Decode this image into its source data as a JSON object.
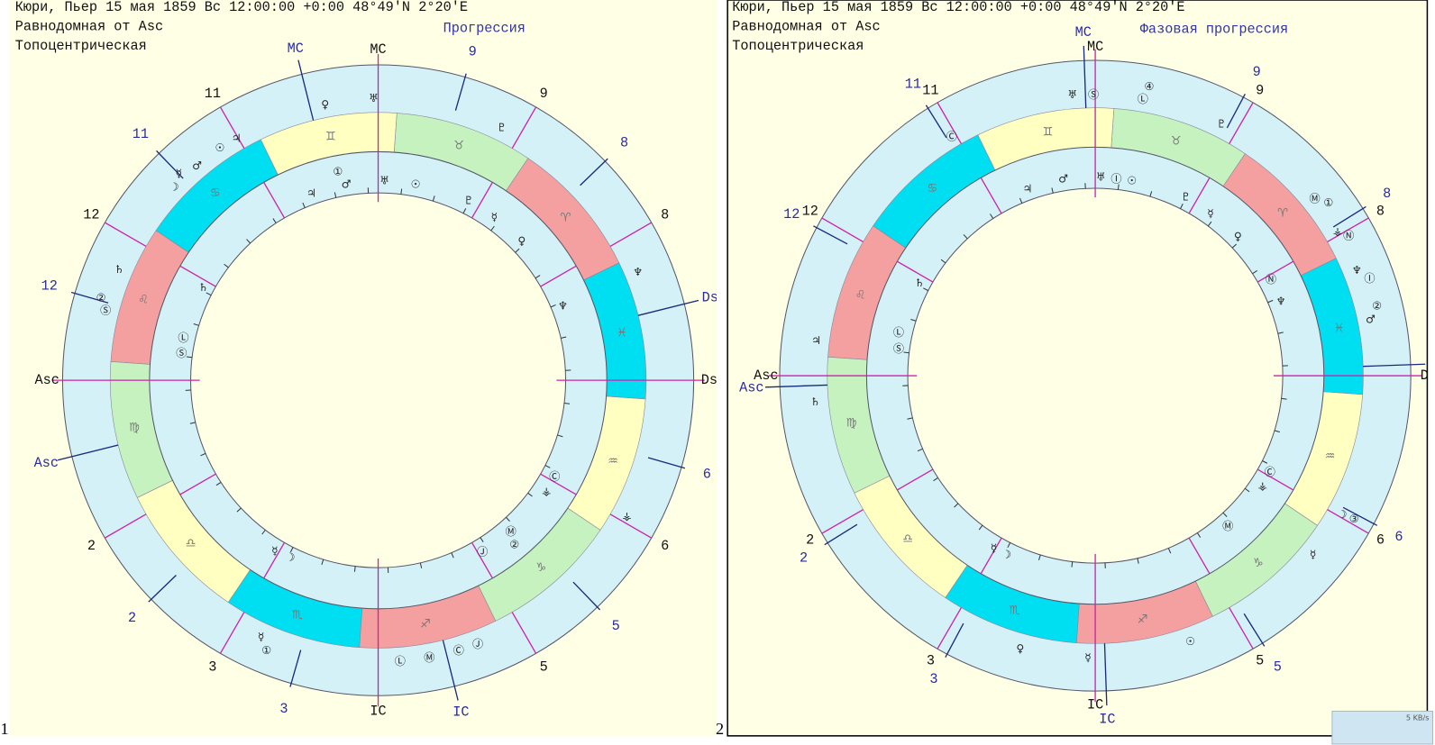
{
  "signs": [
    "♈",
    "♉",
    "♊",
    "♋",
    "♌",
    "♍",
    "♎",
    "♏",
    "♐",
    "♑",
    "♒",
    "♓"
  ],
  "charts": [
    {
      "number": "1",
      "header": [
        "Кюри, Пьер  15 мая 1859  Вс  12:00:00 +0:00 48°49'N   2°20'E",
        "Равнодомная от Asc",
        "Топоцентрическая"
      ],
      "title": "Прогрессия",
      "house_labels": [
        "MC",
        "11",
        "12",
        "Asc",
        "2",
        "3",
        "IC",
        "5",
        "6",
        "Ds",
        "8",
        "9"
      ],
      "progressed_labels": [
        "MC",
        "11",
        "12",
        "Asc",
        "2",
        "3",
        "IC",
        "5",
        "6",
        "Ds",
        "8",
        "9"
      ],
      "outer_glyphs": [
        "♀",
        "♅",
        "♇",
        "☉",
        "♃",
        "♂",
        "☿",
        "☽",
        "♄",
        "②",
        "Ⓢ",
        "♆",
        "⚶",
        "☿",
        "①",
        "Ⓛ",
        "Ⓜ",
        "Ⓒ",
        "Ⓙ"
      ],
      "inner_glyphs": [
        "①",
        "♂",
        "♅",
        "☉",
        "♃",
        "♇",
        "☿",
        "♀",
        "♄",
        "♆",
        "Ⓛ",
        "Ⓢ",
        "Ⓒ",
        "⚶",
        "Ⓜ",
        "②",
        "Ⓙ",
        "☿",
        "☽"
      ]
    },
    {
      "number": "2",
      "header": [
        "Кюри, Пьер  15 мая 1859  Вс  12:00:00 +0:00 48°49'N   2°20'E",
        "Равнодомная от Asc",
        "Топоцентрическая"
      ],
      "title": "Фазовая прогрессия",
      "house_labels": [
        "MC",
        "11",
        "12",
        "Asc",
        "2",
        "3",
        "IC",
        "5",
        "6",
        "D",
        "8",
        "9"
      ],
      "progressed_labels": [
        "MC",
        "11",
        "12",
        "Asc",
        "2",
        "3",
        "IC",
        "5",
        "6",
        "Ds",
        "8",
        "9"
      ],
      "outer_glyphs": [
        "♅",
        "Ⓢ",
        "④",
        "Ⓛ",
        "♇",
        "Ⓒ",
        "Ⓜ",
        "①",
        "⚶",
        "Ⓝ",
        "♆",
        "Ⓘ",
        "②",
        "♂",
        "♃",
        "♄",
        "☽",
        "③",
        "☿",
        "♀",
        "☿",
        "☉"
      ],
      "inner_glyphs": [
        "♃",
        "♂",
        "♅",
        "Ⓘ",
        "☉",
        "♇",
        "☿",
        "♀",
        "Ⓝ",
        "♆",
        "♄",
        "Ⓛ",
        "Ⓢ",
        "Ⓒ",
        "⚶",
        "Ⓜ",
        "☿",
        "☽"
      ]
    }
  ],
  "status": "5 KB/s"
}
